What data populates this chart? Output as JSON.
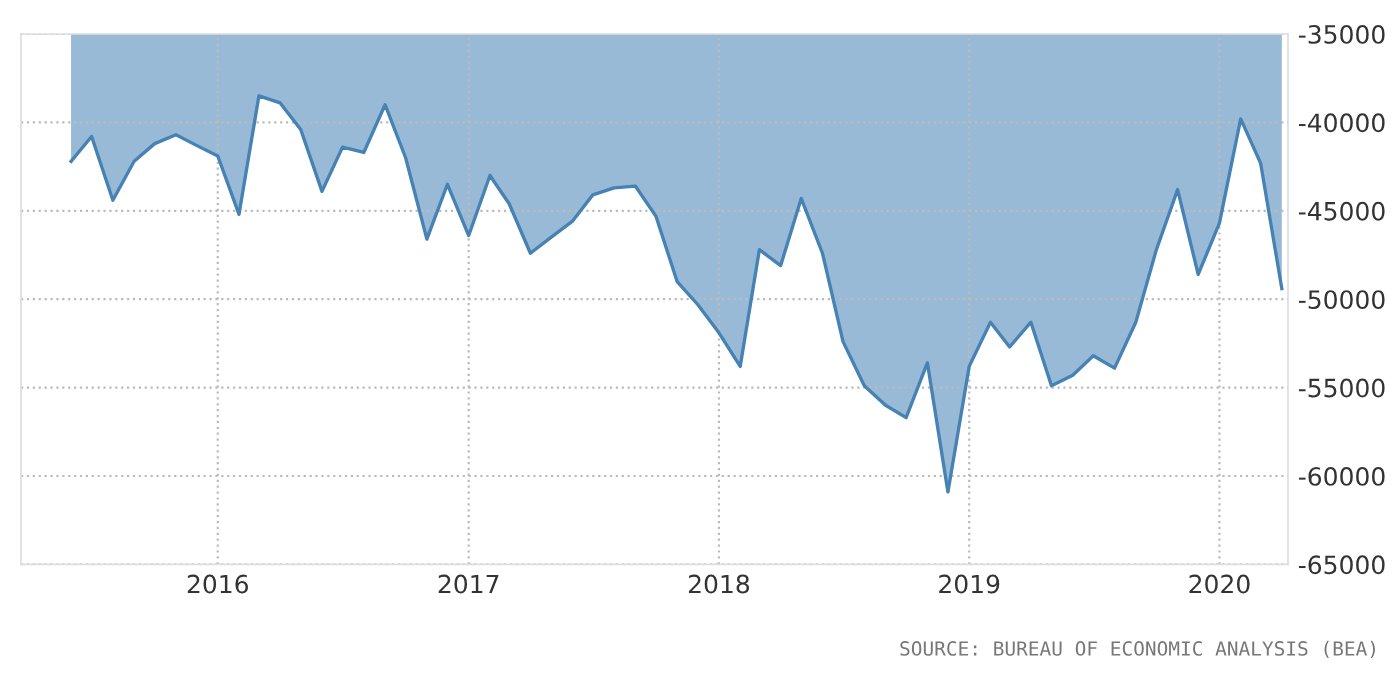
{
  "chart_data": {
    "type": "area",
    "x": [
      "2015-06",
      "2015-07",
      "2015-08",
      "2015-09",
      "2015-10",
      "2015-11",
      "2015-12",
      "2016-01",
      "2016-02",
      "2016-03",
      "2016-04",
      "2016-05",
      "2016-06",
      "2016-07",
      "2016-08",
      "2016-09",
      "2016-10",
      "2016-11",
      "2016-12",
      "2017-01",
      "2017-02",
      "2017-03",
      "2017-04",
      "2017-05",
      "2017-06",
      "2017-07",
      "2017-08",
      "2017-09",
      "2017-10",
      "2017-11",
      "2017-12",
      "2018-01",
      "2018-02",
      "2018-03",
      "2018-04",
      "2018-05",
      "2018-06",
      "2018-07",
      "2018-08",
      "2018-09",
      "2018-10",
      "2018-11",
      "2018-12",
      "2019-01",
      "2019-02",
      "2019-03",
      "2019-04",
      "2019-05",
      "2019-06",
      "2019-07",
      "2019-08",
      "2019-09",
      "2019-10",
      "2019-11",
      "2019-12",
      "2020-01",
      "2020-02",
      "2020-03",
      "2020-04"
    ],
    "series": [
      {
        "color": "#4682b4",
        "values": [
          -42200,
          -40800,
          -44400,
          -42200,
          -41200,
          -40700,
          -41300,
          -41900,
          -45200,
          -38500,
          -38900,
          -40400,
          -43900,
          -41400,
          -41700,
          -39000,
          -42000,
          -46600,
          -43500,
          -46400,
          -43000,
          -44600,
          -47400,
          -46500,
          -45600,
          -44100,
          -43700,
          -43600,
          -45300,
          -49000,
          -50300,
          -51900,
          -53800,
          -47200,
          -48100,
          -44300,
          -47400,
          -52400,
          -54900,
          -56000,
          -56700,
          -53600,
          -60900,
          -53800,
          -51300,
          -52700,
          -51300,
          -54900,
          -54300,
          -53200,
          -53900,
          -51300,
          -47200,
          -43800,
          -48600,
          -45700,
          -39800,
          -42300,
          -49400
        ]
      }
    ],
    "xlim": [
      "2015-03-20",
      "2020-04-10"
    ],
    "xticks": [
      "2016",
      "2017",
      "2018",
      "2019",
      "2020"
    ],
    "ylim": [
      -65000,
      -35000
    ],
    "yticks": [
      -65000,
      -60000,
      -55000,
      -50000,
      -45000,
      -40000,
      -35000
    ],
    "grid": true,
    "annotations": [
      "SOURCE: BUREAU OF ECONOMIC ANALYSIS (BEA)"
    ]
  }
}
